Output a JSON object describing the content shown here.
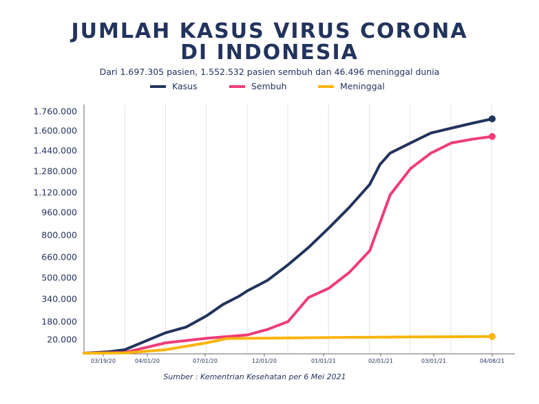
{
  "chart_data": {
    "type": "line",
    "title_line1": "JUMLAH KASUS VIRUS CORONA",
    "title_line2": "DI INDONESIA",
    "subtitle": "Dari 1.697.305  pasien, 1.552.532 pasien sembuh dan 46.496 meninggal dunia",
    "source": "Sumber : Kementrian Kesehatan per 6 Mei 2021",
    "xlabel": "",
    "ylabel": "",
    "x_tick_labels": [
      "03/19/20",
      "04/01/20",
      "07/01/20",
      "12/01/20",
      "01/01/21",
      "02/01/21",
      "03/01/21",
      "04/08/21"
    ],
    "y_tick_labels": [
      "1.760.000",
      "1.600.000",
      "1.440.000",
      "1.280.000",
      "1.120.000",
      "960.000",
      "800.000",
      "660.000",
      "500.000",
      "340.000",
      "180.000",
      "20.000"
    ],
    "y_tick_values": [
      1760000,
      1600000,
      1440000,
      1280000,
      1120000,
      960000,
      800000,
      660000,
      500000,
      340000,
      180000,
      20000
    ],
    "grid": "vertical",
    "legend_position": "top-center",
    "series": [
      {
        "name": "Kasus",
        "color": "#22335c",
        "end_marker": true,
        "points": [
          [
            0,
            0
          ],
          [
            0.6,
            2000
          ],
          [
            1,
            5000
          ],
          [
            2,
            80000
          ],
          [
            2.5,
            130000
          ],
          [
            3,
            220000
          ],
          [
            3.4,
            300000
          ],
          [
            3.8,
            360000
          ],
          [
            4,
            400000
          ],
          [
            4.5,
            480000
          ],
          [
            5,
            600000
          ],
          [
            5.5,
            720000
          ],
          [
            6,
            850000
          ],
          [
            6.5,
            1000000
          ],
          [
            7,
            1180000
          ],
          [
            7.25,
            1330000
          ],
          [
            7.5,
            1420000
          ],
          [
            8,
            1500000
          ],
          [
            8.5,
            1580000
          ],
          [
            9,
            1620000
          ],
          [
            9.5,
            1660000
          ],
          [
            10,
            1697305
          ]
        ]
      },
      {
        "name": "Sembuh",
        "color": "#f03c78",
        "end_marker": true,
        "points": [
          [
            0,
            0
          ],
          [
            0.6,
            500
          ],
          [
            1,
            1000
          ],
          [
            2,
            15000
          ],
          [
            3,
            30000
          ],
          [
            3.5,
            45000
          ],
          [
            4,
            60000
          ],
          [
            4.5,
            110000
          ],
          [
            5,
            180000
          ],
          [
            5.5,
            350000
          ],
          [
            6,
            420000
          ],
          [
            6.5,
            540000
          ],
          [
            7,
            700000
          ],
          [
            7.5,
            1100000
          ],
          [
            8,
            1300000
          ],
          [
            8.5,
            1420000
          ],
          [
            9,
            1500000
          ],
          [
            9.5,
            1530000
          ],
          [
            10,
            1552532
          ]
        ]
      },
      {
        "name": "Meninggal",
        "color": "#fbb40a",
        "end_marker": true,
        "points": [
          [
            0,
            0
          ],
          [
            0.6,
            100
          ],
          [
            1,
            200
          ],
          [
            2,
            5000
          ],
          [
            3,
            15000
          ],
          [
            3.5,
            28000
          ],
          [
            4,
            30000
          ],
          [
            5,
            33000
          ],
          [
            6,
            37000
          ],
          [
            7,
            39000
          ],
          [
            8,
            42000
          ],
          [
            9,
            44000
          ],
          [
            10,
            46496
          ]
        ]
      }
    ]
  }
}
